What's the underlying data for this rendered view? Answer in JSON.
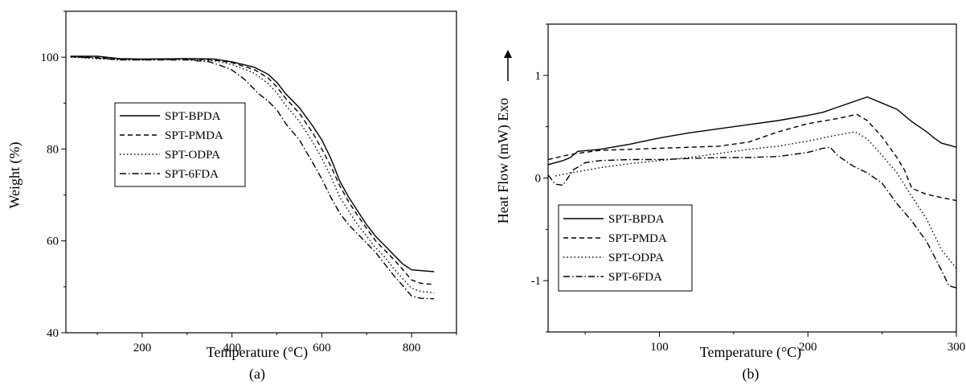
{
  "chart_data": [
    {
      "type": "line",
      "panel_label": "(a)",
      "xlabel": "Temperature (°C)",
      "ylabel": "Weight (%)",
      "xlim": [
        30,
        900
      ],
      "ylim": [
        40,
        110
      ],
      "xticks": [
        200,
        400,
        600,
        800
      ],
      "yticks": [
        40,
        60,
        80,
        100
      ],
      "legend_position": "center-left",
      "grid": false,
      "series": [
        {
          "name": "SPT-BPDA",
          "style": "solid",
          "points": [
            [
              40,
              100.2
            ],
            [
              100,
              100.2
            ],
            [
              150,
              99.7
            ],
            [
              200,
              99.6
            ],
            [
              300,
              99.7
            ],
            [
              360,
              99.6
            ],
            [
              400,
              99.0
            ],
            [
              450,
              97.8
            ],
            [
              480,
              96.3
            ],
            [
              500,
              94.5
            ],
            [
              520,
              92.0
            ],
            [
              550,
              89.0
            ],
            [
              580,
              85.0
            ],
            [
              600,
              82.0
            ],
            [
              620,
              78.0
            ],
            [
              640,
              73.0
            ],
            [
              660,
              69.5
            ],
            [
              680,
              66.5
            ],
            [
              700,
              63.5
            ],
            [
              720,
              61.0
            ],
            [
              740,
              59.0
            ],
            [
              760,
              57.0
            ],
            [
              780,
              55.0
            ],
            [
              800,
              53.7
            ],
            [
              850,
              53.3
            ]
          ]
        },
        {
          "name": "SPT-PMDA",
          "style": "dashed",
          "points": [
            [
              40,
              100.1
            ],
            [
              100,
              99.9
            ],
            [
              150,
              99.6
            ],
            [
              200,
              99.5
            ],
            [
              300,
              99.6
            ],
            [
              360,
              99.4
            ],
            [
              400,
              98.8
            ],
            [
              450,
              97.3
            ],
            [
              480,
              95.5
            ],
            [
              500,
              93.5
            ],
            [
              520,
              91.0
            ],
            [
              550,
              87.8
            ],
            [
              580,
              83.5
            ],
            [
              600,
              80.0
            ],
            [
              620,
              76.3
            ],
            [
              640,
              72.0
            ],
            [
              660,
              68.5
            ],
            [
              680,
              65.5
            ],
            [
              700,
              62.7
            ],
            [
              720,
              60.0
            ],
            [
              740,
              58.0
            ],
            [
              760,
              56.0
            ],
            [
              780,
              53.8
            ],
            [
              800,
              51.5
            ],
            [
              820,
              50.8
            ],
            [
              850,
              50.5
            ]
          ]
        },
        {
          "name": "SPT-ODPA",
          "style": "dotted",
          "points": [
            [
              40,
              100.0
            ],
            [
              100,
              99.7
            ],
            [
              150,
              99.5
            ],
            [
              200,
              99.4
            ],
            [
              300,
              99.5
            ],
            [
              360,
              99.2
            ],
            [
              400,
              98.4
            ],
            [
              450,
              96.5
            ],
            [
              480,
              94.3
            ],
            [
              500,
              92.2
            ],
            [
              520,
              89.5
            ],
            [
              550,
              86.0
            ],
            [
              580,
              81.5
            ],
            [
              600,
              78.0
            ],
            [
              620,
              74.0
            ],
            [
              640,
              69.5
            ],
            [
              660,
              66.5
            ],
            [
              680,
              63.5
            ],
            [
              700,
              61.0
            ],
            [
              720,
              58.5
            ],
            [
              740,
              56.5
            ],
            [
              760,
              54.0
            ],
            [
              780,
              51.8
            ],
            [
              800,
              49.7
            ],
            [
              820,
              49.0
            ],
            [
              850,
              48.7
            ]
          ]
        },
        {
          "name": "SPT-6FDA",
          "style": "dashdot",
          "points": [
            [
              40,
              100.1
            ],
            [
              100,
              99.8
            ],
            [
              150,
              99.4
            ],
            [
              200,
              99.4
            ],
            [
              300,
              99.4
            ],
            [
              350,
              99.0
            ],
            [
              380,
              98.0
            ],
            [
              400,
              97.2
            ],
            [
              430,
              95.0
            ],
            [
              460,
              92.0
            ],
            [
              480,
              90.5
            ],
            [
              500,
              88.5
            ],
            [
              520,
              85.5
            ],
            [
              550,
              82.0
            ],
            [
              580,
              77.0
            ],
            [
              600,
              73.5
            ],
            [
              620,
              69.5
            ],
            [
              640,
              66.0
            ],
            [
              660,
              63.5
            ],
            [
              680,
              61.5
            ],
            [
              700,
              59.5
            ],
            [
              720,
              57.5
            ],
            [
              740,
              55.0
            ],
            [
              760,
              52.5
            ],
            [
              780,
              50.3
            ],
            [
              800,
              48.0
            ],
            [
              820,
              47.5
            ],
            [
              850,
              47.4
            ]
          ]
        }
      ]
    },
    {
      "type": "line",
      "panel_label": "(b)",
      "xlabel": "Temperature (°C)",
      "ylabel": "Heat Flow (mW) Exo",
      "xlim": [
        25,
        300
      ],
      "ylim": [
        -1.5,
        1.5
      ],
      "xticks": [
        100,
        200,
        300
      ],
      "yticks": [
        -1,
        0,
        1
      ],
      "ytick_labels": [
        "-1",
        "0",
        "1"
      ],
      "legend_position": "bottom-left",
      "grid": false,
      "series": [
        {
          "name": "SPT-BPDA",
          "style": "solid",
          "points": [
            [
              25,
              0.13
            ],
            [
              35,
              0.17
            ],
            [
              40,
              0.2
            ],
            [
              45,
              0.26
            ],
            [
              60,
              0.28
            ],
            [
              80,
              0.33
            ],
            [
              100,
              0.39
            ],
            [
              120,
              0.44
            ],
            [
              140,
              0.48
            ],
            [
              160,
              0.52
            ],
            [
              180,
              0.56
            ],
            [
              200,
              0.61
            ],
            [
              210,
              0.64
            ],
            [
              220,
              0.69
            ],
            [
              230,
              0.74
            ],
            [
              240,
              0.79
            ],
            [
              250,
              0.73
            ],
            [
              260,
              0.67
            ],
            [
              270,
              0.55
            ],
            [
              280,
              0.45
            ],
            [
              285,
              0.39
            ],
            [
              290,
              0.34
            ],
            [
              295,
              0.32
            ],
            [
              300,
              0.3
            ]
          ]
        },
        {
          "name": "SPT-PMDA",
          "style": "dashed",
          "points": [
            [
              25,
              0.18
            ],
            [
              40,
              0.23
            ],
            [
              60,
              0.27
            ],
            [
              80,
              0.28
            ],
            [
              100,
              0.29
            ],
            [
              120,
              0.3
            ],
            [
              140,
              0.31
            ],
            [
              160,
              0.35
            ],
            [
              180,
              0.45
            ],
            [
              200,
              0.53
            ],
            [
              220,
              0.58
            ],
            [
              233,
              0.62
            ],
            [
              240,
              0.56
            ],
            [
              250,
              0.4
            ],
            [
              260,
              0.2
            ],
            [
              265,
              0.08
            ],
            [
              270,
              -0.1
            ],
            [
              280,
              -0.16
            ],
            [
              290,
              -0.19
            ],
            [
              300,
              -0.22
            ]
          ]
        },
        {
          "name": "SPT-ODPA",
          "style": "dotted",
          "points": [
            [
              30,
              0.02
            ],
            [
              40,
              0.05
            ],
            [
              60,
              0.1
            ],
            [
              80,
              0.14
            ],
            [
              100,
              0.17
            ],
            [
              120,
              0.2
            ],
            [
              140,
              0.24
            ],
            [
              160,
              0.28
            ],
            [
              180,
              0.31
            ],
            [
              200,
              0.36
            ],
            [
              220,
              0.42
            ],
            [
              232,
              0.45
            ],
            [
              240,
              0.38
            ],
            [
              250,
              0.22
            ],
            [
              260,
              0.05
            ],
            [
              270,
              -0.18
            ],
            [
              280,
              -0.4
            ],
            [
              290,
              -0.7
            ],
            [
              300,
              -0.88
            ]
          ]
        },
        {
          "name": "SPT-6FDA",
          "style": "dashdot",
          "points": [
            [
              25,
              0.03
            ],
            [
              30,
              -0.06
            ],
            [
              35,
              -0.07
            ],
            [
              42,
              0.08
            ],
            [
              50,
              0.15
            ],
            [
              60,
              0.17
            ],
            [
              80,
              0.18
            ],
            [
              100,
              0.18
            ],
            [
              120,
              0.19
            ],
            [
              140,
              0.2
            ],
            [
              160,
              0.2
            ],
            [
              180,
              0.21
            ],
            [
              200,
              0.25
            ],
            [
              210,
              0.29
            ],
            [
              215,
              0.3
            ],
            [
              220,
              0.22
            ],
            [
              230,
              0.12
            ],
            [
              240,
              0.05
            ],
            [
              250,
              -0.05
            ],
            [
              260,
              -0.25
            ],
            [
              270,
              -0.42
            ],
            [
              280,
              -0.62
            ],
            [
              290,
              -0.9
            ],
            [
              295,
              -1.05
            ],
            [
              300,
              -1.07
            ]
          ]
        }
      ]
    }
  ]
}
